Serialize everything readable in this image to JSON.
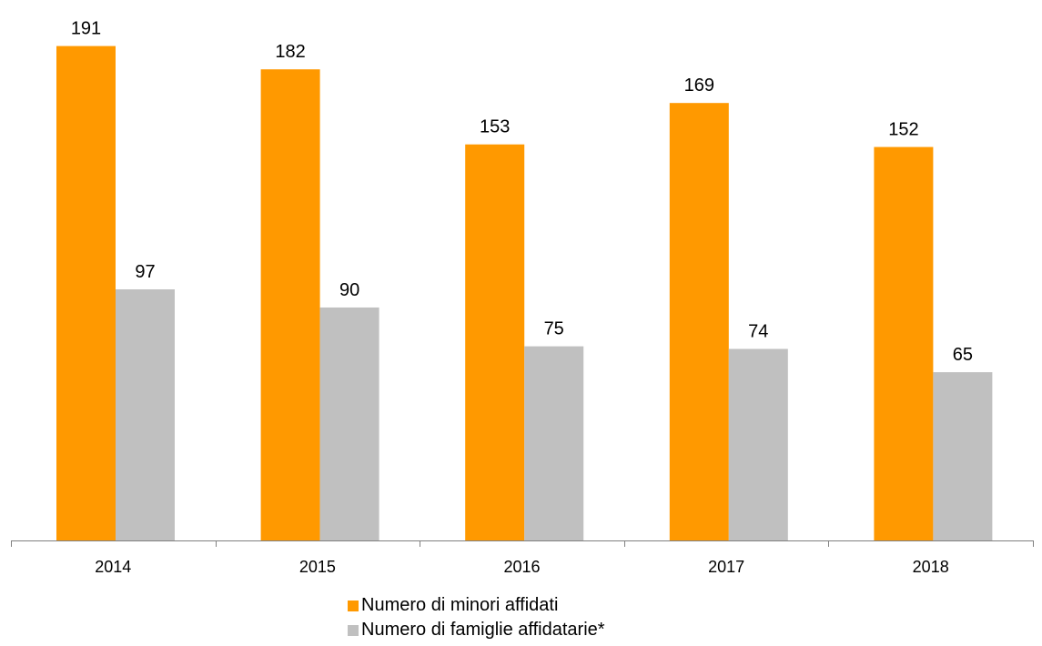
{
  "chart_data": {
    "type": "bar",
    "title": "",
    "xlabel": "",
    "ylabel": "",
    "categories": [
      "2014",
      "2015",
      "2016",
      "2017",
      "2018"
    ],
    "series": [
      {
        "name": "Numero di minori affidati",
        "color": "#FF9900",
        "values": [
          191,
          182,
          153,
          169,
          152
        ]
      },
      {
        "name": "Numero di famiglie affidatarie*",
        "color": "#C0C0C0",
        "values": [
          97,
          90,
          75,
          74,
          65
        ]
      }
    ],
    "ylim": [
      0,
      200
    ],
    "grid": false,
    "data_labels": true,
    "legend_position": "bottom"
  }
}
